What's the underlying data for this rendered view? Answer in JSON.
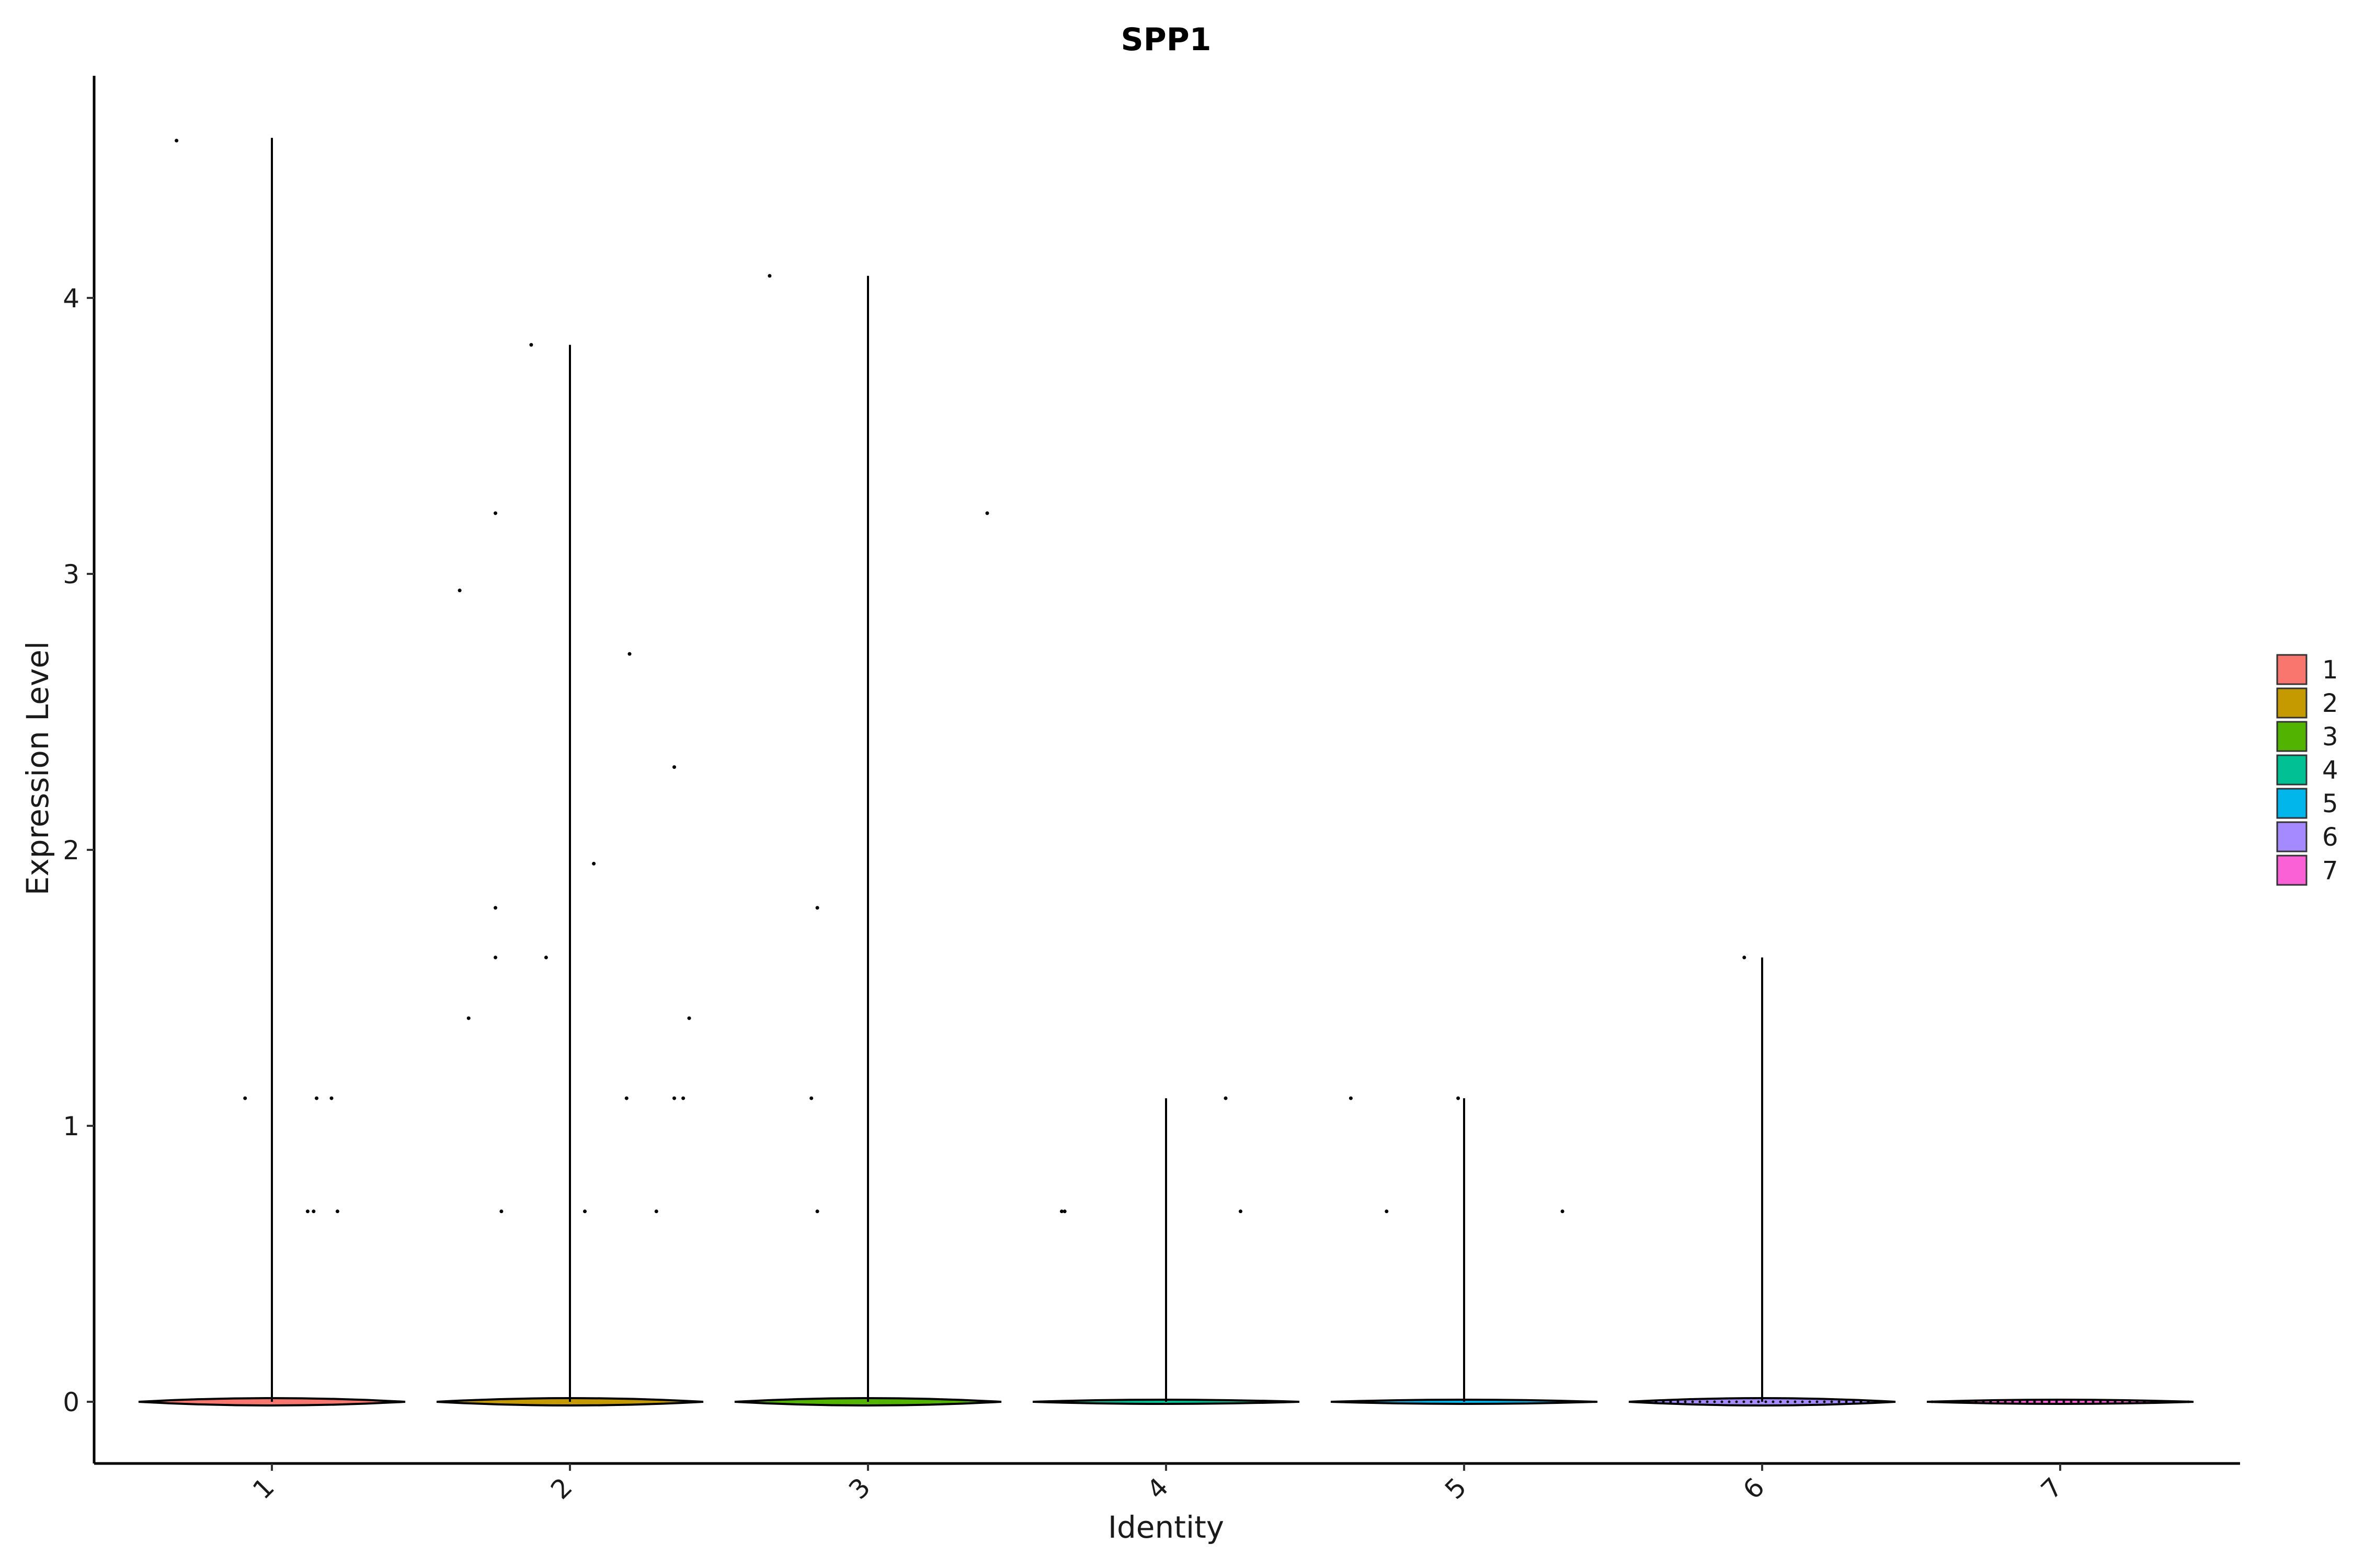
{
  "chart_data": {
    "type": "violin",
    "title": "SPP1",
    "xlabel": "Identity",
    "ylabel": "Expression Level",
    "ylim": [
      -0.22,
      4.8
    ],
    "yticks": [
      0,
      1,
      2,
      3,
      4
    ],
    "categories": [
      "1",
      "2",
      "3",
      "4",
      "5",
      "6",
      "7"
    ],
    "legend": {
      "placement": "right",
      "entries": [
        {
          "label": "1",
          "color": "#F8766D"
        },
        {
          "label": "2",
          "color": "#C49A00"
        },
        {
          "label": "3",
          "color": "#53B400"
        },
        {
          "label": "4",
          "color": "#00C094"
        },
        {
          "label": "5",
          "color": "#00B6EB"
        },
        {
          "label": "6",
          "color": "#A58AFF"
        },
        {
          "label": "7",
          "color": "#FB61D7"
        }
      ]
    },
    "series": [
      {
        "name": "1",
        "max": 4.58,
        "points": [
          {
            "x": -0.32,
            "y": 4.57
          },
          {
            "x": -0.09,
            "y": 1.1
          },
          {
            "x": 0.15,
            "y": 1.1
          },
          {
            "x": 0.2,
            "y": 1.1
          },
          {
            "x": 0.12,
            "y": 0.69
          },
          {
            "x": 0.14,
            "y": 0.69
          },
          {
            "x": 0.22,
            "y": 0.69
          }
        ]
      },
      {
        "name": "2",
        "max": 3.83,
        "points": [
          {
            "x": -0.13,
            "y": 3.83
          },
          {
            "x": -0.25,
            "y": 3.22
          },
          {
            "x": -0.37,
            "y": 2.94
          },
          {
            "x": 0.2,
            "y": 2.71
          },
          {
            "x": 0.35,
            "y": 2.3
          },
          {
            "x": 0.08,
            "y": 1.95
          },
          {
            "x": -0.25,
            "y": 1.79
          },
          {
            "x": -0.25,
            "y": 1.61
          },
          {
            "x": -0.08,
            "y": 1.61
          },
          {
            "x": -0.34,
            "y": 1.39
          },
          {
            "x": 0.4,
            "y": 1.39
          },
          {
            "x": 0.19,
            "y": 1.1
          },
          {
            "x": 0.35,
            "y": 1.1
          },
          {
            "x": 0.38,
            "y": 1.1
          },
          {
            "x": -0.23,
            "y": 0.69
          },
          {
            "x": 0.05,
            "y": 0.69
          },
          {
            "x": 0.29,
            "y": 0.69
          }
        ]
      },
      {
        "name": "3",
        "max": 4.08,
        "points": [
          {
            "x": -0.33,
            "y": 4.08
          },
          {
            "x": 0.4,
            "y": 3.22
          },
          {
            "x": -0.17,
            "y": 1.79
          },
          {
            "x": -0.19,
            "y": 1.1
          },
          {
            "x": -0.17,
            "y": 0.69
          }
        ]
      },
      {
        "name": "4",
        "max": 1.1,
        "points": [
          {
            "x": 0.2,
            "y": 1.1
          },
          {
            "x": -0.35,
            "y": 0.69
          },
          {
            "x": -0.34,
            "y": 0.69
          },
          {
            "x": 0.25,
            "y": 0.69
          }
        ]
      },
      {
        "name": "5",
        "max": 1.1,
        "points": [
          {
            "x": -0.38,
            "y": 1.1
          },
          {
            "x": -0.02,
            "y": 1.1
          },
          {
            "x": -0.26,
            "y": 0.69
          },
          {
            "x": 0.33,
            "y": 0.69
          }
        ]
      },
      {
        "name": "6",
        "max": 1.61,
        "points": [
          {
            "x": -0.06,
            "y": 1.61
          }
        ]
      },
      {
        "name": "7",
        "max": 0,
        "points": []
      }
    ]
  }
}
